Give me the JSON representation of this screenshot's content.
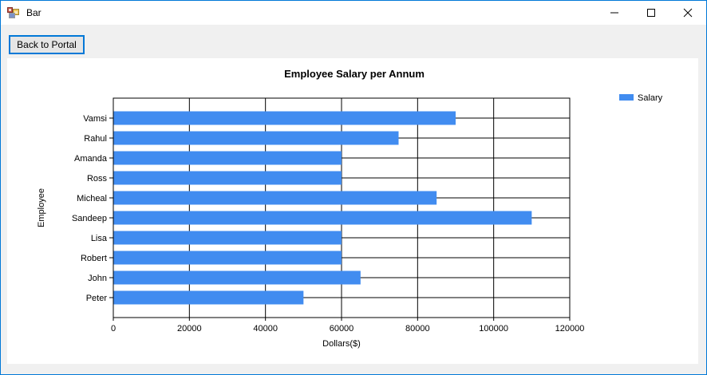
{
  "window": {
    "title": "Bar",
    "controls": [
      {
        "id": "minimize",
        "label": "Minimize"
      },
      {
        "id": "maximize",
        "label": "Maximize"
      },
      {
        "id": "close",
        "label": "Close"
      }
    ]
  },
  "toolbar": {
    "back_button": "Back to Portal"
  },
  "chart_data": {
    "type": "bar",
    "orientation": "horizontal",
    "title": "Employee Salary per Annum",
    "xlabel": "Dollars($)",
    "ylabel": "Employee",
    "categories": [
      "Vamsi",
      "Rahul",
      "Amanda",
      "Ross",
      "Micheal",
      "Sandeep",
      "Lisa",
      "Robert",
      "John",
      "Peter"
    ],
    "series": [
      {
        "name": "Salary",
        "color": "#418CF0",
        "values": [
          90000,
          75000,
          60000,
          60000,
          85000,
          110000,
          60000,
          60000,
          65000,
          50000
        ]
      }
    ],
    "xlim": [
      0,
      120000
    ],
    "xtick_step": 20000,
    "grid": true,
    "legend_position": "top-right"
  },
  "colors": {
    "bar": "#418CF0",
    "window_border": "#0078D7",
    "titlebar_background": "#FFFFFF",
    "form_background": "#F0F0F0",
    "panel_background": "#FFFFFF",
    "grid_line": "#000000",
    "text": "#000000"
  }
}
